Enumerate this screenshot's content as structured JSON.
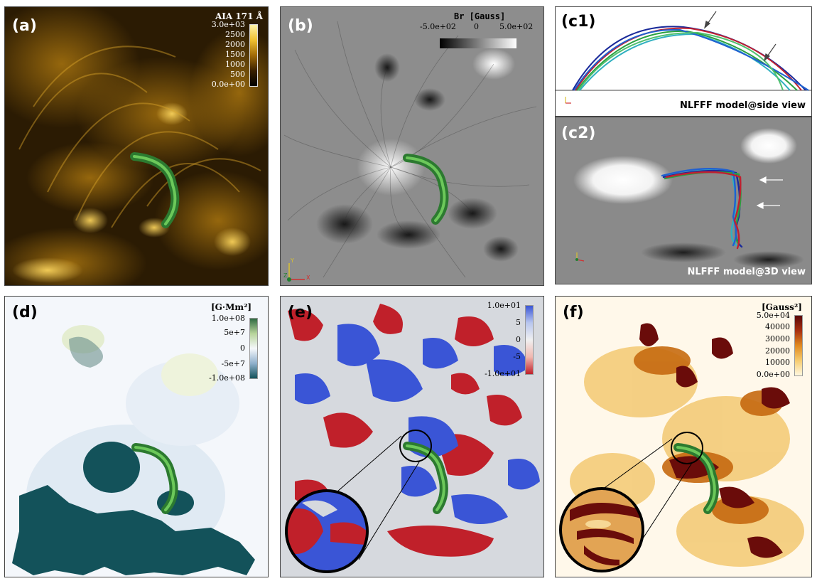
{
  "figure": {
    "panel_a": {
      "label": "(a)",
      "colorbar_title": "AIA 171 Å",
      "ticks": [
        "3.0e+03",
        "2500",
        "2000",
        "1500",
        "1000",
        "500",
        "0.0e+00"
      ]
    },
    "panel_b": {
      "label": "(b)",
      "colorbar_title": "Br [Gauss]",
      "ticks": [
        "-5.0e+02",
        "0",
        "5.0e+02"
      ],
      "axes": {
        "y": "Y",
        "z": "Z",
        "x": "X"
      }
    },
    "panel_c1": {
      "label": "(c1)",
      "caption": "NLFFF model@side view"
    },
    "panel_c2": {
      "label": "(c2)",
      "caption": "NLFFF model@3D view"
    },
    "panel_d": {
      "label": "(d)",
      "colorbar_title": "[G·Mm²]",
      "ticks": [
        "1.0e+08",
        "5e+7",
        "0",
        "-5e+7",
        "-1.0e+08"
      ]
    },
    "panel_e": {
      "label": "(e)",
      "ticks": [
        "1.0e+01",
        "5",
        "0",
        "-5",
        "-1.0e+01"
      ]
    },
    "panel_f": {
      "label": "(f)",
      "colorbar_title": "[Gauss²]",
      "ticks": [
        "5.0e+04",
        "40000",
        "30000",
        "20000",
        "10000",
        "0.0e+00"
      ]
    }
  },
  "colors": {
    "aia_bg": "#2a1a02",
    "aia_bright": "#f3c23a",
    "mag_gray": "#8c8c8c",
    "teal": "#13525a",
    "flux_rope": "#3ea64a",
    "red": "#c0202a",
    "blue": "#3a55d6"
  }
}
